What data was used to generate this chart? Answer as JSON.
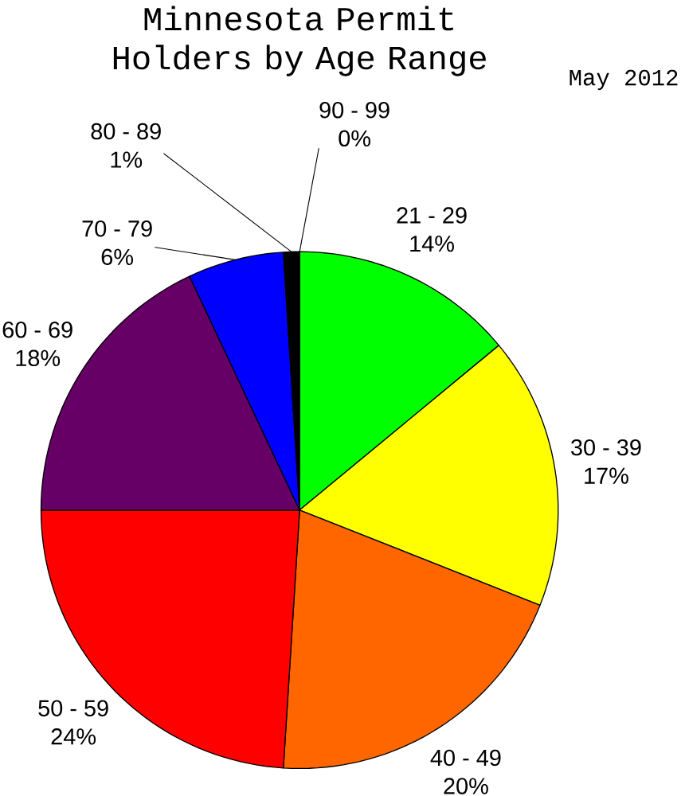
{
  "chart_data": {
    "type": "pie",
    "title": "Minnesota Permit Holders by Age Range",
    "subtitle": "May 2012",
    "categories": [
      "21 - 29",
      "30 - 39",
      "40 - 49",
      "50 - 59",
      "60 - 69",
      "70 - 79",
      "80 - 89",
      "90 - 99"
    ],
    "values": [
      14,
      17,
      20,
      24,
      18,
      6,
      1,
      0
    ],
    "colors": [
      "#00ff00",
      "#ffff00",
      "#ff6600",
      "#ff0000",
      "#660066",
      "#0000ff",
      "#000000",
      "#ffffff"
    ],
    "value_labels": [
      "14%",
      "17%",
      "20%",
      "24%",
      "18%",
      "6%",
      "1%",
      "0%"
    ]
  }
}
